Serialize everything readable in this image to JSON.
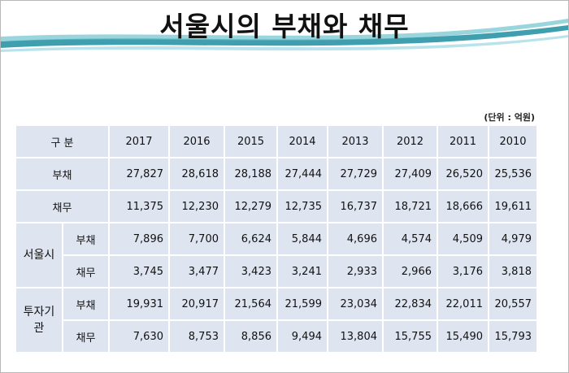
{
  "header": {
    "title": "서울시의 부채와 채무",
    "unit": "(단위 : 억원)"
  },
  "table": {
    "header": [
      "구 분",
      "2017",
      "2016",
      "2015",
      "2014",
      "2013",
      "2012",
      "2011",
      "2010"
    ],
    "rows": [
      {
        "label": "부채",
        "values": [
          "27,827",
          "28,618",
          "28,188",
          "27,444",
          "27,729",
          "27,409",
          "26,520",
          "25,536"
        ]
      },
      {
        "label": "채무",
        "values": [
          "11,375",
          "12,230",
          "12,279",
          "12,735",
          "16,737",
          "18,721",
          "18,666",
          "19,611"
        ]
      }
    ],
    "groups": [
      {
        "label": "서울시",
        "rows": [
          {
            "label": "부채",
            "values": [
              "7,896",
              "7,700",
              "6,624",
              "5,844",
              "4,696",
              "4,574",
              "4,509",
              "4,979"
            ]
          },
          {
            "label": "채무",
            "values": [
              "3,745",
              "3,477",
              "3,423",
              "3,241",
              "2,933",
              "2,966",
              "3,176",
              "3,818"
            ]
          }
        ]
      },
      {
        "label": "투자기관",
        "rows": [
          {
            "label": "부채",
            "values": [
              "19,931",
              "20,917",
              "21,564",
              "21,599",
              "23,034",
              "22,834",
              "22,011",
              "20,557"
            ]
          },
          {
            "label": "채무",
            "values": [
              "7,630",
              "8,753",
              "8,856",
              "9,494",
              "13,804",
              "15,755",
              "15,490",
              "15,793"
            ]
          }
        ]
      }
    ]
  }
}
